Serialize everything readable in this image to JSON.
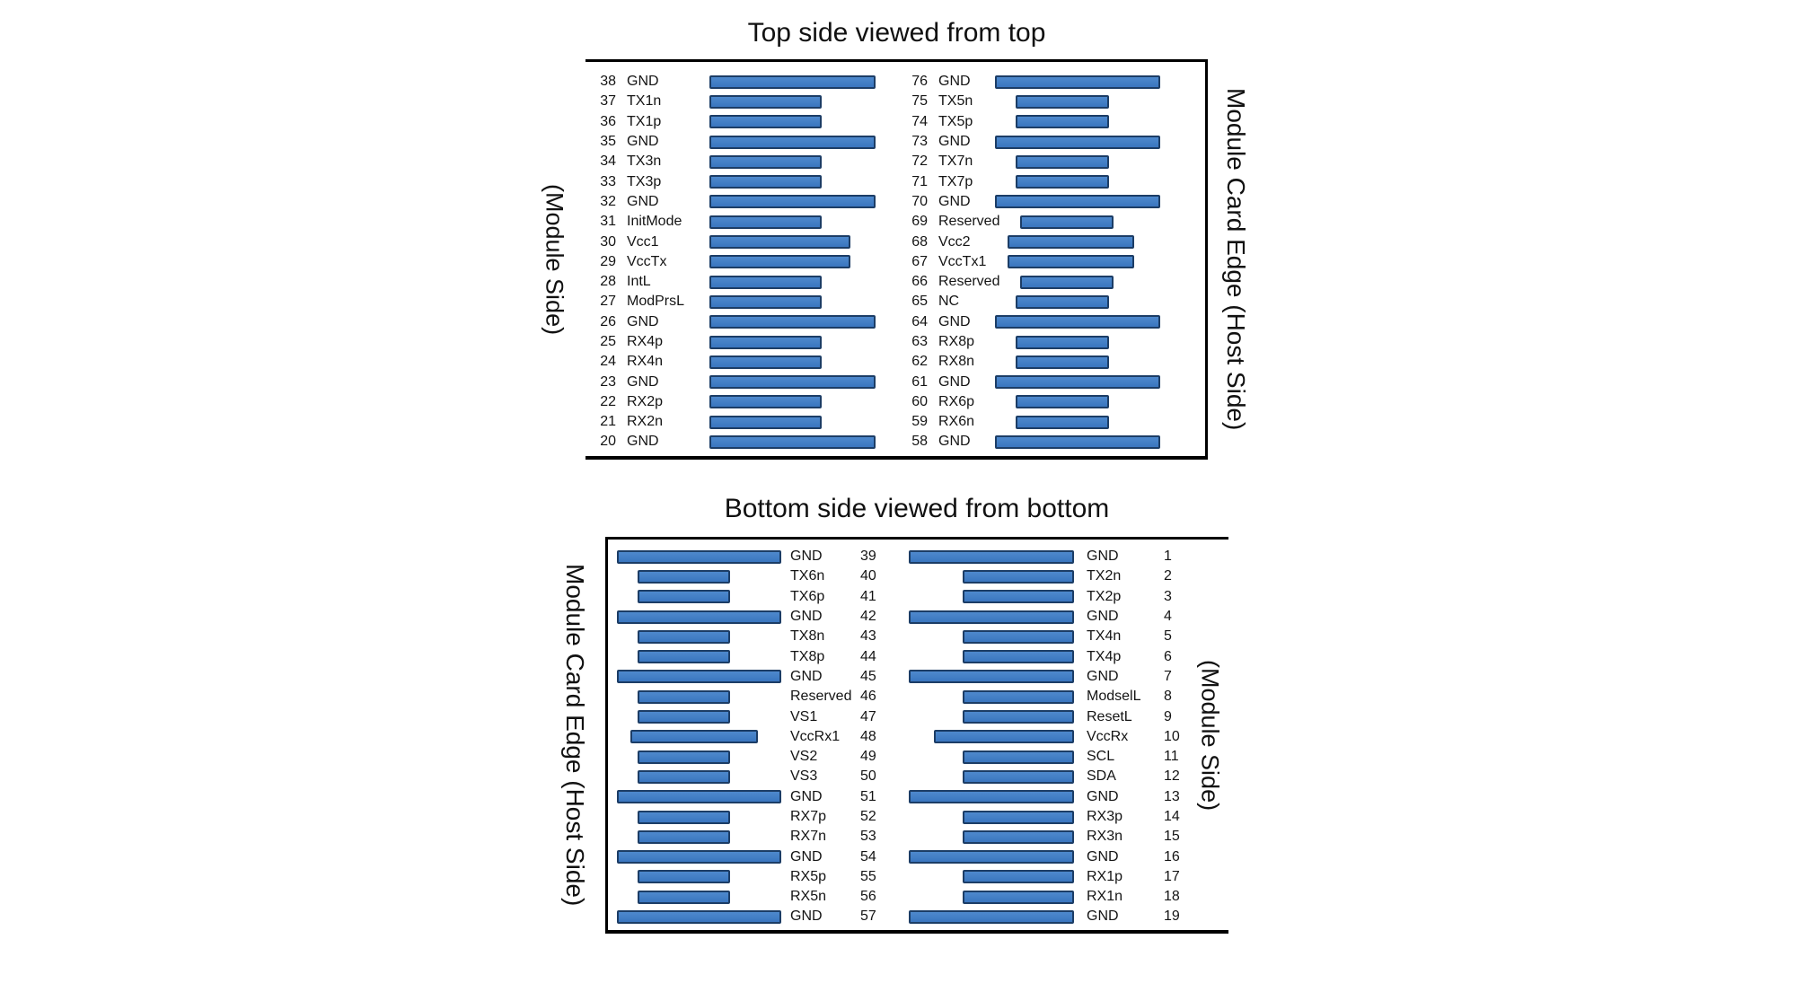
{
  "colors": {
    "bar_fill": "#3F7CC4",
    "bar_border": "#1C3D66",
    "box_border": "#000000",
    "text": "#141414",
    "background": "#FFFFFF"
  },
  "top_section": {
    "title": "Top side viewed from top",
    "left_side_label": "(Module Side)",
    "right_side_label": "Module Card Edge (Host Side)",
    "left_pins": [
      {
        "num": "38",
        "label": "GND",
        "type": "gnd"
      },
      {
        "num": "37",
        "label": "TX1n",
        "type": "sig"
      },
      {
        "num": "36",
        "label": "TX1p",
        "type": "sig"
      },
      {
        "num": "35",
        "label": "GND",
        "type": "gnd"
      },
      {
        "num": "34",
        "label": "TX3n",
        "type": "sig"
      },
      {
        "num": "33",
        "label": "TX3p",
        "type": "sig"
      },
      {
        "num": "32",
        "label": "GND",
        "type": "gnd"
      },
      {
        "num": "31",
        "label": "InitMode",
        "type": "sig"
      },
      {
        "num": "30",
        "label": "Vcc1",
        "type": "vcc"
      },
      {
        "num": "29",
        "label": "VccTx",
        "type": "vcc"
      },
      {
        "num": "28",
        "label": "IntL",
        "type": "sig"
      },
      {
        "num": "27",
        "label": "ModPrsL",
        "type": "sig"
      },
      {
        "num": "26",
        "label": "GND",
        "type": "gnd"
      },
      {
        "num": "25",
        "label": "RX4p",
        "type": "sig"
      },
      {
        "num": "24",
        "label": "RX4n",
        "type": "sig"
      },
      {
        "num": "23",
        "label": "GND",
        "type": "gnd"
      },
      {
        "num": "22",
        "label": "RX2p",
        "type": "sig"
      },
      {
        "num": "21",
        "label": "RX2n",
        "type": "sig"
      },
      {
        "num": "20",
        "label": "GND",
        "type": "gnd"
      }
    ],
    "right_pins": [
      {
        "num": "76",
        "label": "GND",
        "type": "gnd"
      },
      {
        "num": "75",
        "label": "TX5n",
        "type": "sig"
      },
      {
        "num": "74",
        "label": "TX5p",
        "type": "sig"
      },
      {
        "num": "73",
        "label": "GND",
        "type": "gnd"
      },
      {
        "num": "72",
        "label": "TX7n",
        "type": "sig"
      },
      {
        "num": "71",
        "label": "TX7p",
        "type": "sig"
      },
      {
        "num": "70",
        "label": "GND",
        "type": "gnd"
      },
      {
        "num": "69",
        "label": "Reserved",
        "type": "sig"
      },
      {
        "num": "68",
        "label": "Vcc2",
        "type": "vcc"
      },
      {
        "num": "67",
        "label": "VccTx1",
        "type": "vcc"
      },
      {
        "num": "66",
        "label": "Reserved",
        "type": "sig"
      },
      {
        "num": "65",
        "label": "NC",
        "type": "sig"
      },
      {
        "num": "64",
        "label": "GND",
        "type": "gnd"
      },
      {
        "num": "63",
        "label": "RX8p",
        "type": "sig"
      },
      {
        "num": "62",
        "label": "RX8n",
        "type": "sig"
      },
      {
        "num": "61",
        "label": "GND",
        "type": "gnd"
      },
      {
        "num": "60",
        "label": "RX6p",
        "type": "sig"
      },
      {
        "num": "59",
        "label": "RX6n",
        "type": "sig"
      },
      {
        "num": "58",
        "label": "GND",
        "type": "gnd"
      }
    ]
  },
  "bottom_section": {
    "title": "Bottom side viewed from bottom",
    "left_side_label": "Module Card Edge (Host Side)",
    "right_side_label": "(Module Side)",
    "left_pins": [
      {
        "num": "39",
        "label": "GND",
        "type": "gnd"
      },
      {
        "num": "40",
        "label": "TX6n",
        "type": "sig"
      },
      {
        "num": "41",
        "label": "TX6p",
        "type": "sig"
      },
      {
        "num": "42",
        "label": "GND",
        "type": "gnd"
      },
      {
        "num": "43",
        "label": "TX8n",
        "type": "sig"
      },
      {
        "num": "44",
        "label": "TX8p",
        "type": "sig"
      },
      {
        "num": "45",
        "label": "GND",
        "type": "gnd"
      },
      {
        "num": "46",
        "label": "Reserved",
        "type": "sig"
      },
      {
        "num": "47",
        "label": "VS1",
        "type": "sig"
      },
      {
        "num": "48",
        "label": "VccRx1",
        "type": "vcc"
      },
      {
        "num": "49",
        "label": "VS2",
        "type": "sig"
      },
      {
        "num": "50",
        "label": "VS3",
        "type": "sig"
      },
      {
        "num": "51",
        "label": "GND",
        "type": "gnd"
      },
      {
        "num": "52",
        "label": "RX7p",
        "type": "sig"
      },
      {
        "num": "53",
        "label": "RX7n",
        "type": "sig"
      },
      {
        "num": "54",
        "label": "GND",
        "type": "gnd"
      },
      {
        "num": "55",
        "label": "RX5p",
        "type": "sig"
      },
      {
        "num": "56",
        "label": "RX5n",
        "type": "sig"
      },
      {
        "num": "57",
        "label": "GND",
        "type": "gnd"
      }
    ],
    "right_pins": [
      {
        "num": "1",
        "label": "GND",
        "type": "gnd"
      },
      {
        "num": "2",
        "label": "TX2n",
        "type": "sig"
      },
      {
        "num": "3",
        "label": "TX2p",
        "type": "sig"
      },
      {
        "num": "4",
        "label": "GND",
        "type": "gnd"
      },
      {
        "num": "5",
        "label": "TX4n",
        "type": "sig"
      },
      {
        "num": "6",
        "label": "TX4p",
        "type": "sig"
      },
      {
        "num": "7",
        "label": "GND",
        "type": "gnd"
      },
      {
        "num": "8",
        "label": "ModselL",
        "type": "sig"
      },
      {
        "num": "9",
        "label": "ResetL",
        "type": "sig"
      },
      {
        "num": "10",
        "label": "VccRx",
        "type": "vcc"
      },
      {
        "num": "11",
        "label": "SCL",
        "type": "sig"
      },
      {
        "num": "12",
        "label": "SDA",
        "type": "sig"
      },
      {
        "num": "13",
        "label": "GND",
        "type": "gnd"
      },
      {
        "num": "14",
        "label": "RX3p",
        "type": "sig"
      },
      {
        "num": "15",
        "label": "RX3n",
        "type": "sig"
      },
      {
        "num": "16",
        "label": "GND",
        "type": "gnd"
      },
      {
        "num": "17",
        "label": "RX1p",
        "type": "sig"
      },
      {
        "num": "18",
        "label": "RX1n",
        "type": "sig"
      },
      {
        "num": "19",
        "label": "GND",
        "type": "gnd"
      }
    ]
  }
}
